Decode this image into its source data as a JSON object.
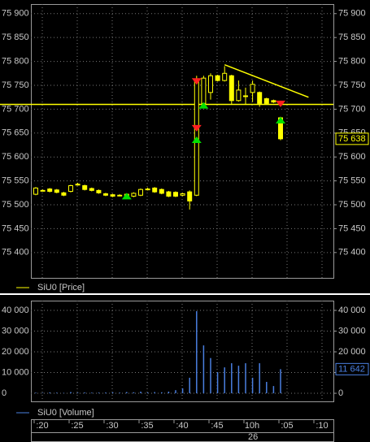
{
  "time_axis": {
    "labels": [
      ":20",
      ":25",
      ":30",
      ":35",
      ":40",
      ":45",
      "10h",
      ":05",
      ":10"
    ],
    "date": "26"
  },
  "chart_data": [
    {
      "type": "candlestick",
      "legend": "SiU0 [Price]",
      "color": "#ffff00",
      "open": [
        75522,
        75530,
        75533,
        75531,
        75525,
        75528,
        75543,
        75540,
        75534,
        75530,
        75523,
        75521,
        75520,
        75518,
        75518,
        75520,
        75533,
        75535,
        75532,
        75527,
        75526,
        75520,
        75527,
        75520,
        75712,
        75735,
        75770,
        75760,
        75770,
        75718,
        75728,
        75735,
        75735,
        75722,
        75718,
        75682
      ],
      "close": [
        75535,
        75530,
        75528,
        75526,
        75520,
        75540,
        75543,
        75532,
        75530,
        75525,
        75520,
        75518,
        75520,
        75522,
        75524,
        75532,
        75533,
        75527,
        75524,
        75518,
        75518,
        75523,
        75508,
        75758,
        75765,
        75770,
        75760,
        75775,
        75718,
        75740,
        75728,
        75752,
        75712,
        75712,
        75715,
        75638
      ],
      "high": [
        75537,
        75532,
        75535,
        75533,
        75527,
        75542,
        75546,
        75542,
        75536,
        75532,
        75525,
        75523,
        75522,
        75524,
        75526,
        75534,
        75536,
        75537,
        75534,
        75529,
        75528,
        75525,
        75530,
        75770,
        75770,
        75775,
        75772,
        75790,
        75772,
        75760,
        75745,
        75760,
        75737,
        75724,
        75720,
        75684
      ],
      "low": [
        75520,
        75528,
        75526,
        75524,
        75518,
        75526,
        75540,
        75530,
        75528,
        75523,
        75518,
        75516,
        75518,
        75516,
        75516,
        75518,
        75530,
        75525,
        75522,
        75516,
        75516,
        75518,
        75490,
        75518,
        75708,
        75720,
        75758,
        75758,
        75710,
        75716,
        75710,
        75715,
        75705,
        75710,
        75713,
        75635
      ],
      "ylim": [
        75347,
        75920
      ],
      "yticks": [
        {
          "value": 75900,
          "label": "75 900"
        },
        {
          "value": 75850,
          "label": "75 850"
        },
        {
          "value": 75800,
          "label": "75 800"
        },
        {
          "value": 75750,
          "label": "75 750"
        },
        {
          "value": 75700,
          "label": "75 700"
        },
        {
          "value": 75650,
          "label": "75 650"
        },
        {
          "value": 75600,
          "label": "75 600"
        },
        {
          "value": 75550,
          "label": "75 550"
        },
        {
          "value": 75500,
          "label": "75 500"
        },
        {
          "value": 75450,
          "label": "75 450"
        },
        {
          "value": 75400,
          "label": "75 400"
        }
      ],
      "grid": true,
      "hline": 75710,
      "last_value": 75638,
      "last_value_label": "75 638",
      "buy_markers": {
        "x": [
          13,
          23,
          24,
          35
        ],
        "values": [
          75518,
          75636,
          75708,
          75677
        ],
        "color": "#00e000"
      },
      "sell_markers": {
        "x": [
          23,
          23,
          35
        ],
        "values": [
          75758,
          75660,
          75711
        ],
        "color": "#ff2020"
      },
      "trendline": {
        "x": [
          27,
          39
        ],
        "values": [
          75793,
          75725
        ]
      }
    },
    {
      "type": "bar",
      "legend": "SiU0 [Volume]",
      "color": "#4a7fe0",
      "values": [
        300,
        200,
        400,
        300,
        200,
        600,
        300,
        400,
        300,
        300,
        400,
        500,
        300,
        600,
        500,
        800,
        400,
        600,
        500,
        800,
        1500,
        2400,
        7500,
        39600,
        23100,
        17000,
        10200,
        12500,
        14500,
        13300,
        14500,
        7500,
        14500,
        5500,
        3500,
        11642
      ],
      "ylim": [
        -3900,
        44700
      ],
      "yticks": [
        {
          "value": 40000,
          "label": "40 000"
        },
        {
          "value": 30000,
          "label": "30 000"
        },
        {
          "value": 20000,
          "label": "20 000"
        },
        {
          "value": 10000,
          "label": "10 000"
        },
        0
      ],
      "grid": true,
      "last_value": 11642,
      "last_value_label": "11 642"
    }
  ]
}
